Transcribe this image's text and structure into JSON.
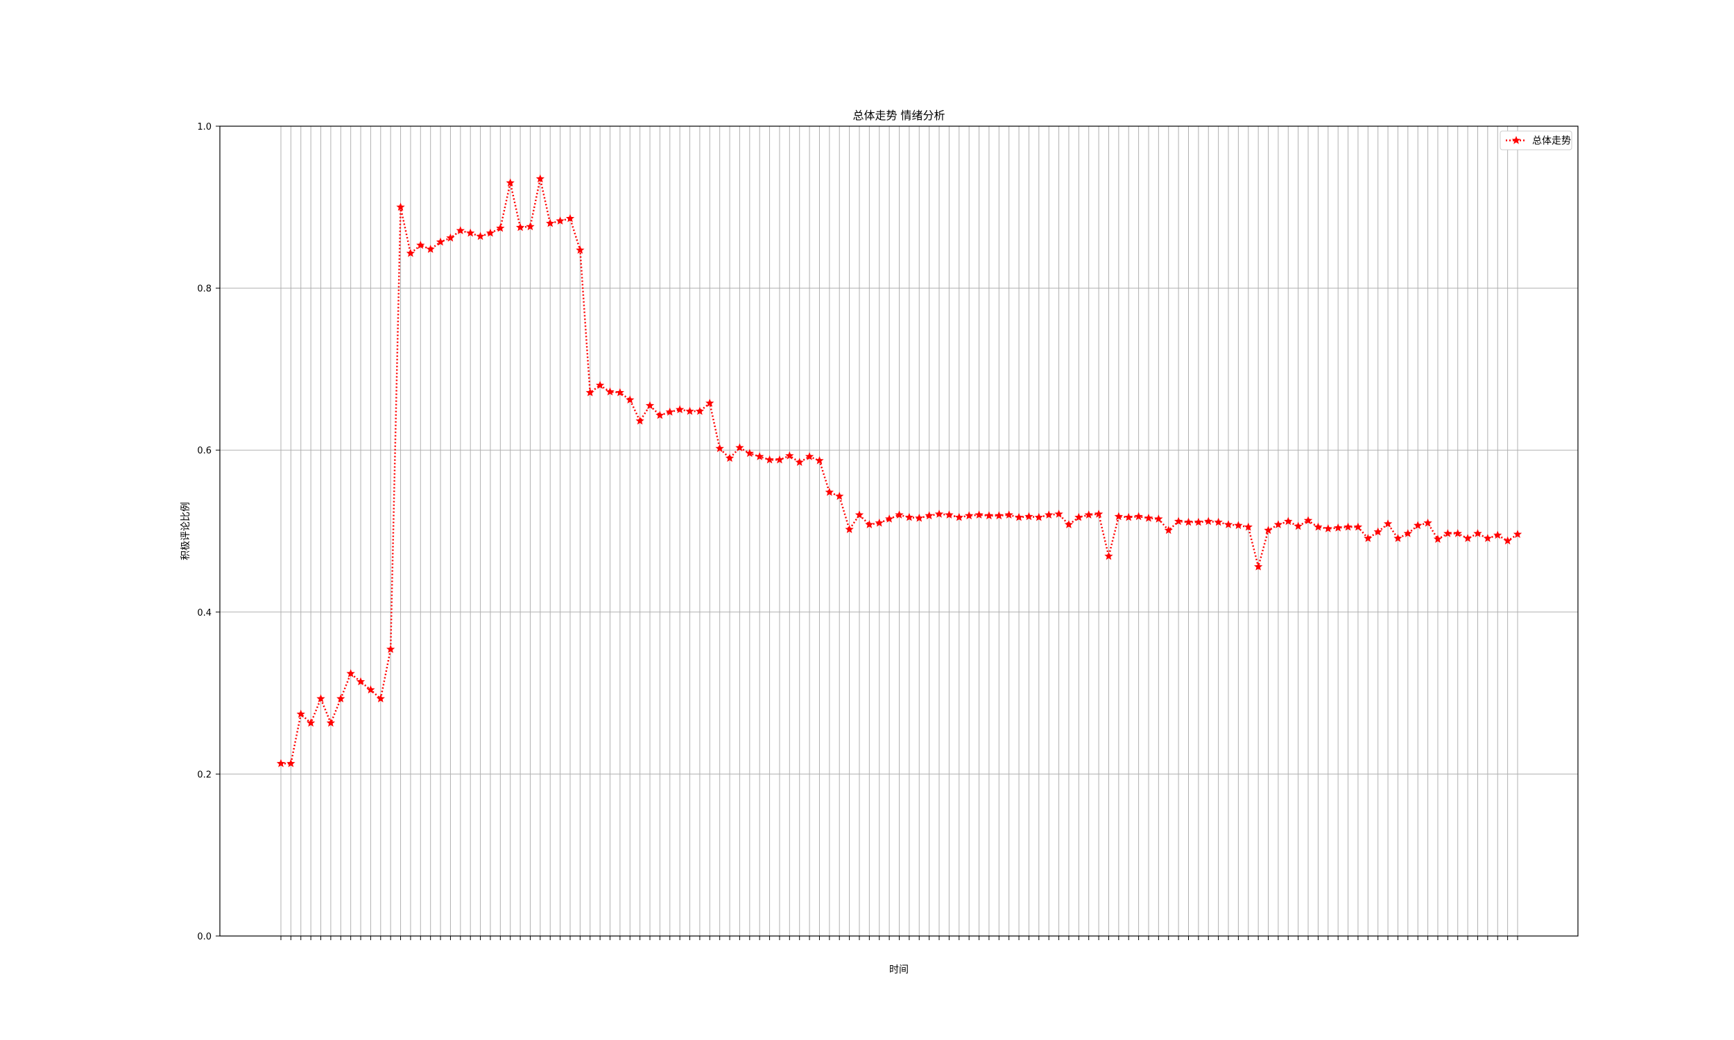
{
  "chart_data": {
    "type": "line",
    "title": "总体走势  情绪分析",
    "xlabel": "时间",
    "ylabel": "积极评论比例",
    "ylim": [
      0,
      1
    ],
    "yticks": [
      "0.0",
      "0.2",
      "0.4",
      "0.6",
      "0.8",
      "1.0"
    ],
    "grid": true,
    "legend_position": "top-right",
    "series": [
      {
        "name": "总体走势",
        "color": "#ff0000",
        "marker": "star",
        "linestyle": "dotted",
        "values": [
          0.213,
          0.213,
          0.274,
          0.263,
          0.293,
          0.263,
          0.293,
          0.324,
          0.314,
          0.304,
          0.293,
          0.354,
          0.9,
          0.843,
          0.853,
          0.848,
          0.857,
          0.862,
          0.871,
          0.868,
          0.864,
          0.868,
          0.874,
          0.93,
          0.875,
          0.876,
          0.935,
          0.88,
          0.883,
          0.886,
          0.847,
          0.671,
          0.68,
          0.672,
          0.671,
          0.662,
          0.636,
          0.655,
          0.643,
          0.647,
          0.65,
          0.648,
          0.648,
          0.658,
          0.602,
          0.59,
          0.603,
          0.596,
          0.592,
          0.588,
          0.588,
          0.593,
          0.585,
          0.592,
          0.587,
          0.548,
          0.543,
          0.502,
          0.52,
          0.508,
          0.51,
          0.515,
          0.52,
          0.517,
          0.516,
          0.519,
          0.521,
          0.52,
          0.517,
          0.519,
          0.52,
          0.519,
          0.519,
          0.52,
          0.517,
          0.518,
          0.517,
          0.52,
          0.521,
          0.508,
          0.517,
          0.52,
          0.521,
          0.469,
          0.518,
          0.517,
          0.518,
          0.516,
          0.515,
          0.501,
          0.512,
          0.511,
          0.511,
          0.512,
          0.511,
          0.508,
          0.507,
          0.505,
          0.456,
          0.501,
          0.508,
          0.512,
          0.506,
          0.513,
          0.505,
          0.503,
          0.504,
          0.505,
          0.505,
          0.491,
          0.499,
          0.509,
          0.491,
          0.497,
          0.507,
          0.51,
          0.49,
          0.497,
          0.497,
          0.491,
          0.497,
          0.491,
          0.495,
          0.488,
          0.496
        ]
      }
    ]
  }
}
